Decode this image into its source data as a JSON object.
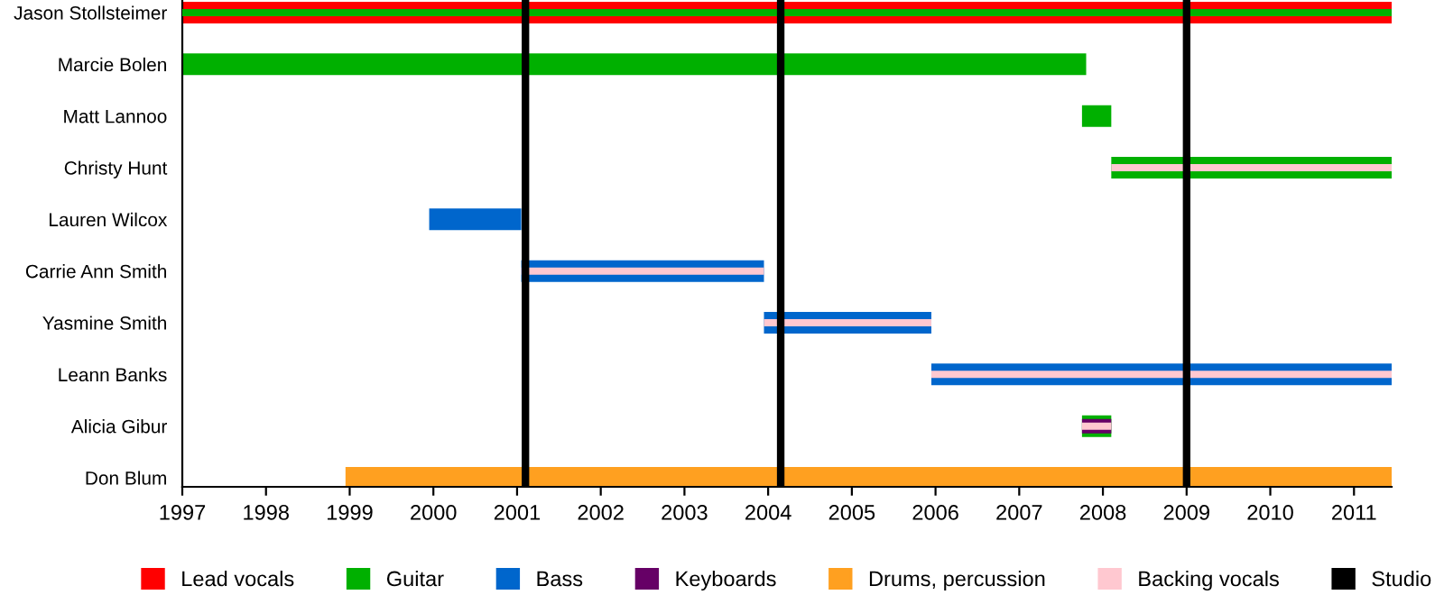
{
  "chart_data": {
    "type": "bar",
    "orientation": "horizontal",
    "stacked": false,
    "categories": [
      "Jason Stollsteimer",
      "Marcie Bolen",
      "Matt Lannoo",
      "Christy Hunt",
      "Lauren Wilcox",
      "Carrie Ann Smith",
      "Yasmine Smith",
      "Leann Banks",
      "Alicia Gibur",
      "Don Blum"
    ],
    "series": [
      {
        "name": "Lead vocals",
        "color": "#ff0000",
        "base": [
          1997,
          null,
          null,
          null,
          null,
          null,
          null,
          null,
          null,
          null
        ],
        "values": [
          14.45,
          null,
          null,
          null,
          null,
          null,
          null,
          null,
          null,
          null
        ]
      },
      {
        "name": "Guitar",
        "color": "#00b000",
        "base": [
          1997,
          1997,
          2007.75,
          2008.1,
          null,
          null,
          null,
          null,
          2007.75,
          null
        ],
        "values": [
          14.45,
          10.8,
          0.35,
          3.35,
          null,
          null,
          null,
          null,
          0.35,
          null
        ]
      },
      {
        "name": "Bass",
        "color": "#0066cc",
        "base": [
          null,
          null,
          null,
          null,
          1999.95,
          2001.05,
          2003.95,
          2005.95,
          null,
          null
        ],
        "values": [
          null,
          null,
          null,
          null,
          1.1,
          2.9,
          2.0,
          5.5,
          null,
          null
        ]
      },
      {
        "name": "Keyboards",
        "color": "#660066",
        "base": [
          null,
          null,
          null,
          null,
          null,
          null,
          null,
          null,
          2007.75,
          null
        ],
        "values": [
          null,
          null,
          null,
          null,
          null,
          null,
          null,
          null,
          0.35,
          null
        ]
      },
      {
        "name": "Drums, percussion",
        "color": "#ffa020",
        "base": [
          null,
          null,
          null,
          null,
          null,
          null,
          null,
          null,
          null,
          1998.95
        ],
        "values": [
          null,
          null,
          null,
          null,
          null,
          null,
          null,
          null,
          null,
          12.5
        ]
      },
      {
        "name": "Backing vocals",
        "color": "#ffc8d0",
        "base": [
          null,
          null,
          null,
          2008.1,
          null,
          2001.05,
          2003.95,
          2005.95,
          2007.75,
          null
        ],
        "values": [
          null,
          null,
          null,
          3.35,
          null,
          2.9,
          2.0,
          5.5,
          0.35,
          null
        ]
      }
    ],
    "ref_lines": [
      {
        "axis": "x",
        "value": 2001.1,
        "label": "Studio",
        "color": "#000000"
      },
      {
        "axis": "x",
        "value": 2004.15,
        "color": "#000000"
      },
      {
        "axis": "x",
        "value": 2009.0,
        "color": "#000000"
      }
    ],
    "xlim": [
      1997,
      2011.45
    ],
    "xticks": [
      1997,
      1998,
      1999,
      2000,
      2001,
      2002,
      2003,
      2004,
      2005,
      2006,
      2007,
      2008,
      2009,
      2010,
      2011
    ],
    "grid": false,
    "legend": "bottom"
  }
}
